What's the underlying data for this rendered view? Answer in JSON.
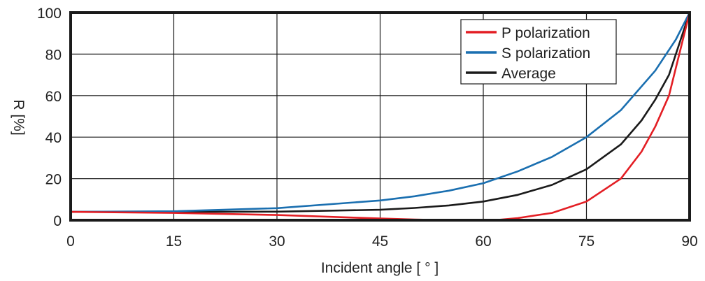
{
  "chart_data": {
    "type": "line",
    "title": "",
    "xlabel": "Incident angle [ ° ]",
    "ylabel": "R [%]",
    "xlim": [
      0,
      90
    ],
    "ylim": [
      0,
      100
    ],
    "xticks": [
      0,
      15,
      30,
      45,
      60,
      75,
      90
    ],
    "yticks": [
      0,
      20,
      40,
      60,
      80,
      100
    ],
    "grid": true,
    "legend_position": "top-right",
    "series": [
      {
        "name": "P polarization",
        "color": "#e31e24",
        "x": [
          0,
          15,
          30,
          45,
          50,
          55,
          60,
          62,
          65,
          70,
          75,
          80,
          83,
          85,
          87,
          90
        ],
        "y": [
          4,
          3.5,
          2.5,
          0.8,
          0.3,
          0,
          0,
          0.1,
          1,
          3.5,
          9,
          20,
          33,
          45,
          60,
          100
        ]
      },
      {
        "name": "S polarization",
        "color": "#1a6fb0",
        "x": [
          0,
          15,
          30,
          45,
          50,
          55,
          60,
          65,
          70,
          75,
          80,
          85,
          88,
          90
        ],
        "y": [
          4,
          4.3,
          5.8,
          9.5,
          11.5,
          14.2,
          17.8,
          23.5,
          30.5,
          40,
          53,
          72,
          87,
          100
        ]
      },
      {
        "name": "Average",
        "color": "#1a1a1a",
        "x": [
          0,
          15,
          30,
          45,
          50,
          55,
          60,
          65,
          70,
          75,
          80,
          83,
          85,
          87,
          90
        ],
        "y": [
          4,
          4,
          4.1,
          5,
          5.9,
          7.1,
          9,
          12.2,
          17,
          24.5,
          36.5,
          48,
          58,
          70,
          100
        ]
      }
    ]
  }
}
